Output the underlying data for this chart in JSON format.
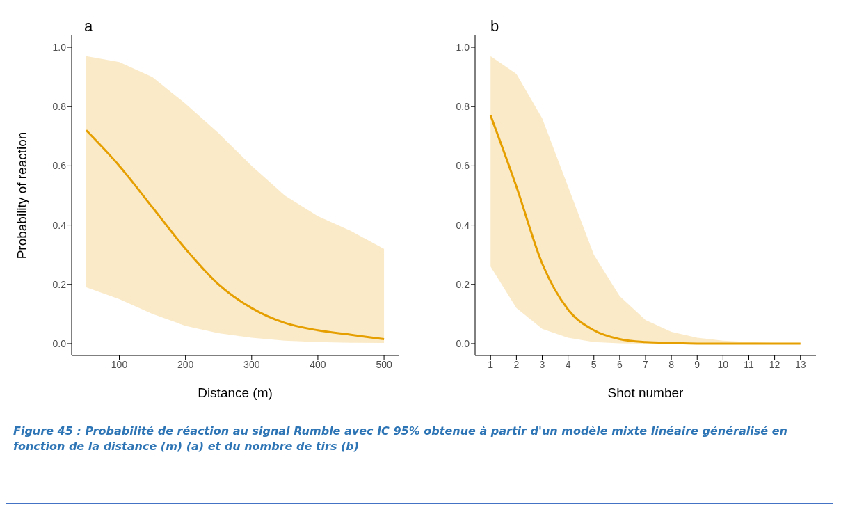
{
  "chart_data": [
    {
      "type": "line",
      "title": "a",
      "xlabel": "Distance (m)",
      "ylabel": "Probability of reaction",
      "x": [
        50,
        100,
        150,
        200,
        250,
        300,
        350,
        400,
        450,
        500
      ],
      "series": [
        {
          "color": "#e69f00",
          "values": [
            0.72,
            0.6,
            0.46,
            0.32,
            0.2,
            0.12,
            0.07,
            0.045,
            0.03,
            0.015
          ],
          "lower": [
            0.19,
            0.15,
            0.1,
            0.06,
            0.035,
            0.02,
            0.01,
            0.005,
            0.003,
            0.002
          ],
          "upper": [
            0.97,
            0.95,
            0.9,
            0.81,
            0.71,
            0.6,
            0.5,
            0.43,
            0.38,
            0.32
          ]
        }
      ],
      "xlim": [
        28,
        522
      ],
      "xticks": [
        100,
        200,
        300,
        400,
        500
      ],
      "ylim": [
        -0.04,
        1.04
      ],
      "yticks": [
        {
          "value": 0,
          "label": "0.0"
        },
        {
          "value": 0.2,
          "label": "0.2"
        },
        {
          "value": 0.4,
          "label": "0.4"
        },
        {
          "value": 0.6,
          "label": "0.6"
        },
        {
          "value": 0.8,
          "label": "0.8"
        },
        {
          "value": 1,
          "label": "1.0"
        }
      ],
      "grid": false,
      "legend": false,
      "marker": "none",
      "line_style": "solid",
      "annotations": [
        "Figure 45 :  Probabilité de réaction au signal Rumble avec IC 95% obtenue à partir d'un modèle mixte linéaire généralisé en fonction de la distance (m) (a) et du nombre de tirs (b)"
      ]
    },
    {
      "type": "line",
      "title": "b",
      "xlabel": "Shot number",
      "x": [
        1,
        2,
        3,
        4,
        5,
        6,
        7,
        8,
        9,
        10,
        11,
        12,
        13
      ],
      "series": [
        {
          "color": "#e69f00",
          "values": [
            0.77,
            0.53,
            0.27,
            0.115,
            0.045,
            0.015,
            0.005,
            0.002,
            0,
            0,
            0,
            0,
            0
          ],
          "lower": [
            0.26,
            0.12,
            0.05,
            0.02,
            0.005,
            0.001,
            0,
            0,
            0,
            0,
            0,
            0,
            0
          ],
          "upper": [
            0.97,
            0.91,
            0.76,
            0.53,
            0.3,
            0.16,
            0.08,
            0.04,
            0.02,
            0.01,
            0.005,
            0.002,
            0.001
          ]
        }
      ],
      "xlim": [
        0.4,
        13.6
      ],
      "xticks": [
        1,
        2,
        3,
        4,
        5,
        6,
        7,
        8,
        9,
        10,
        11,
        12,
        13
      ],
      "ylim": [
        -0.04,
        1.04
      ],
      "yticks": [
        {
          "value": 0,
          "label": "0.0"
        },
        {
          "value": 0.2,
          "label": "0.2"
        },
        {
          "value": 0.4,
          "label": "0.4"
        },
        {
          "value": 0.6,
          "label": "0.6"
        },
        {
          "value": 0.8,
          "label": "0.8"
        },
        {
          "value": 1,
          "label": "1.0"
        }
      ],
      "grid": false,
      "legend": false,
      "marker": "none",
      "line_style": "solid"
    }
  ]
}
